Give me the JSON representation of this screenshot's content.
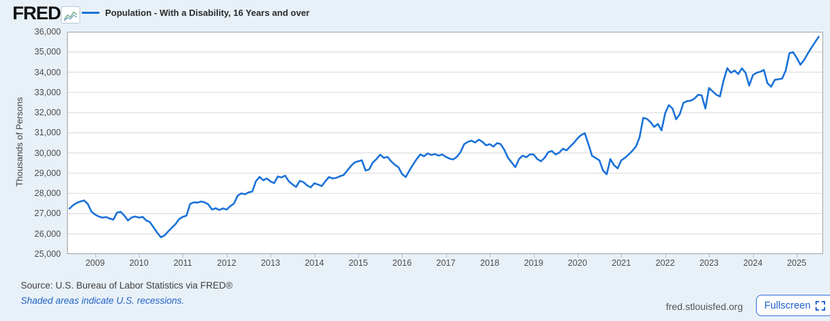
{
  "header": {
    "logo_text": "FRED"
  },
  "footer": {
    "source": "Source: U.S. Bureau of Labor Statistics via FRED®",
    "note": "Shaded areas indicate U.S. recessions.",
    "site": "fred.stlouisfed.org",
    "fullscreen_label": "Fullscreen"
  },
  "chart_data": {
    "type": "line",
    "title": "Population - With a Disability, 16 Years and over",
    "ylabel": "Thousands of Persons",
    "xlabel": "",
    "ylim": [
      25000,
      36000
    ],
    "y_ticks": [
      25000,
      26000,
      27000,
      28000,
      29000,
      30000,
      31000,
      32000,
      33000,
      34000,
      35000,
      36000
    ],
    "y_tick_labels": [
      "25,000",
      "26,000",
      "27,000",
      "28,000",
      "29,000",
      "30,000",
      "31,000",
      "32,000",
      "33,000",
      "34,000",
      "35,000",
      "36,000"
    ],
    "x_tick_labels": [
      "2009",
      "2010",
      "2011",
      "2012",
      "2013",
      "2014",
      "2015",
      "2016",
      "2017",
      "2018",
      "2019",
      "2020",
      "2021",
      "2022",
      "2023",
      "2024",
      "2025"
    ],
    "x_start_month": "2008-06",
    "x_end_month": "2025-07",
    "grid": "horizontal-only",
    "legend_position": "top-left",
    "line_color": "#1b72d8",
    "recession_band_color": "#e4e4e4",
    "recessions": [
      {
        "start": "2007-12",
        "end": "2009-06"
      },
      {
        "start": "2020-02",
        "end": "2020-04"
      }
    ],
    "series": [
      {
        "name": "Population - With a Disability, 16 Years and over",
        "frequency": "monthly",
        "values": [
          27250,
          27420,
          27530,
          27600,
          27650,
          27480,
          27100,
          26950,
          26860,
          26800,
          26830,
          26760,
          26700,
          27050,
          27090,
          26900,
          26660,
          26810,
          26860,
          26800,
          26840,
          26660,
          26580,
          26320,
          26060,
          25830,
          25920,
          26120,
          26300,
          26480,
          26730,
          26840,
          26900,
          27480,
          27560,
          27540,
          27600,
          27560,
          27450,
          27200,
          27270,
          27180,
          27260,
          27200,
          27370,
          27500,
          27880,
          28000,
          27960,
          28050,
          28090,
          28600,
          28820,
          28650,
          28740,
          28590,
          28510,
          28840,
          28790,
          28880,
          28600,
          28450,
          28320,
          28620,
          28560,
          28400,
          28300,
          28500,
          28440,
          28360,
          28600,
          28810,
          28740,
          28770,
          28850,
          28910,
          29130,
          29360,
          29530,
          29590,
          29640,
          29130,
          29190,
          29530,
          29700,
          29920,
          29760,
          29810,
          29590,
          29420,
          29300,
          28960,
          28810,
          29130,
          29420,
          29700,
          29930,
          29840,
          29980,
          29900,
          29950,
          29870,
          29930,
          29810,
          29720,
          29680,
          29810,
          30040,
          30440,
          30550,
          30610,
          30520,
          30660,
          30550,
          30380,
          30440,
          30320,
          30490,
          30440,
          30150,
          29760,
          29530,
          29300,
          29700,
          29870,
          29790,
          29930,
          29930,
          29700,
          29590,
          29760,
          30040,
          30100,
          29930,
          30020,
          30210,
          30130,
          30320,
          30500,
          30720,
          30890,
          30980,
          30430,
          29860,
          29750,
          29640,
          29130,
          28950,
          29700,
          29400,
          29240,
          29640,
          29760,
          29930,
          30100,
          30320,
          30780,
          31740,
          31690,
          31520,
          31290,
          31440,
          31120,
          31970,
          32370,
          32200,
          31670,
          31920,
          32480,
          32570,
          32590,
          32690,
          32880,
          32850,
          32200,
          33220,
          33050,
          32880,
          32800,
          33600,
          34200,
          33970,
          34080,
          33910,
          34190,
          33970,
          33340,
          33850,
          33970,
          34020,
          34110,
          33450,
          33280,
          33620,
          33650,
          33680,
          34080,
          34940,
          34990,
          34710,
          34370,
          34600,
          34920,
          35200,
          35480,
          35750
        ]
      }
    ]
  }
}
